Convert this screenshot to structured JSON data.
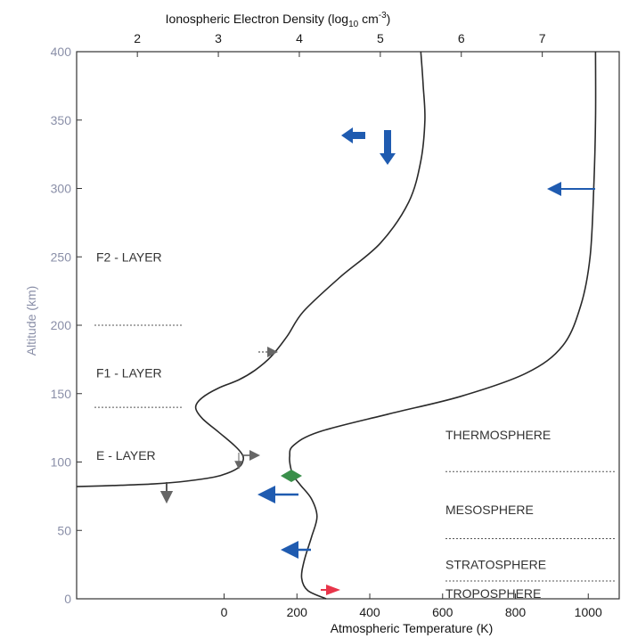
{
  "chart_data": {
    "type": "line",
    "top_axis": {
      "label_main": "Ionospheric Electron Density (log",
      "label_sub": "10",
      "label_unit": " cm",
      "label_sup": "-3",
      "label_close": ")",
      "ticks": [
        "2",
        "3",
        "4",
        "5",
        "6",
        "7"
      ],
      "range": [
        1.25,
        7.95
      ]
    },
    "bottom_axis": {
      "label": "Atmospheric Temperature (K)",
      "ticks": [
        "0",
        "200",
        "400",
        "600",
        "800",
        "1000"
      ],
      "range": [
        -405,
        1085
      ]
    },
    "left_axis": {
      "label": "Altitude (km)",
      "ticks": [
        "0",
        "50",
        "100",
        "150",
        "200",
        "250",
        "300",
        "350",
        "400"
      ],
      "range": [
        0,
        400
      ]
    },
    "series": [
      {
        "axis": "top",
        "points": [
          [
            1.25,
            82
          ],
          [
            1.8,
            83
          ],
          [
            2.2,
            84
          ],
          [
            2.6,
            86
          ],
          [
            2.95,
            89
          ],
          [
            3.12,
            92
          ],
          [
            3.25,
            96
          ],
          [
            3.3,
            100
          ],
          [
            3.3,
            105
          ],
          [
            3.2,
            112
          ],
          [
            3.0,
            122
          ],
          [
            2.8,
            132
          ],
          [
            2.72,
            140
          ],
          [
            2.8,
            147
          ],
          [
            3.0,
            154
          ],
          [
            3.25,
            160
          ],
          [
            3.45,
            167
          ],
          [
            3.65,
            177
          ],
          [
            3.85,
            192
          ],
          [
            4.05,
            210
          ],
          [
            4.5,
            235
          ],
          [
            5.0,
            260
          ],
          [
            5.35,
            290
          ],
          [
            5.5,
            320
          ],
          [
            5.55,
            350
          ],
          [
            5.53,
            375
          ],
          [
            5.5,
            400
          ]
        ]
      },
      {
        "axis": "bottom",
        "points": [
          [
            280,
            0
          ],
          [
            230,
            6
          ],
          [
            213,
            15
          ],
          [
            220,
            28
          ],
          [
            240,
            45
          ],
          [
            255,
            60
          ],
          [
            240,
            73
          ],
          [
            210,
            83
          ],
          [
            190,
            90
          ],
          [
            182,
            97
          ],
          [
            180,
            104
          ],
          [
            190,
            112
          ],
          [
            260,
            122
          ],
          [
            450,
            135
          ],
          [
            650,
            148
          ],
          [
            830,
            165
          ],
          [
            930,
            185
          ],
          [
            980,
            215
          ],
          [
            1005,
            250
          ],
          [
            1015,
            300
          ],
          [
            1020,
            350
          ],
          [
            1020,
            400
          ]
        ]
      }
    ],
    "layers": [
      {
        "label": "F2 - LAYER",
        "alt": 250,
        "top_line": null
      },
      {
        "label": "F1 - LAYER",
        "alt": 165,
        "top_line": 200
      },
      {
        "label": "E - LAYER",
        "alt": 105,
        "top_line": 140
      }
    ],
    "regions": [
      {
        "label": "THERMOSPHERE",
        "alt": 120,
        "boundary": 93
      },
      {
        "label": "MESOSPHERE",
        "alt": 65,
        "boundary": 44
      },
      {
        "label": "STRATOSPHERE",
        "alt": 25,
        "boundary": 13
      },
      {
        "label": "TROPOSPHERE",
        "alt": 4,
        "boundary": null
      }
    ],
    "colors": {
      "curve": "#2a2a2a",
      "blue": "#1f5bb0",
      "gray": "#666666",
      "green": "#3a8f4a",
      "red": "#e8354a"
    }
  }
}
